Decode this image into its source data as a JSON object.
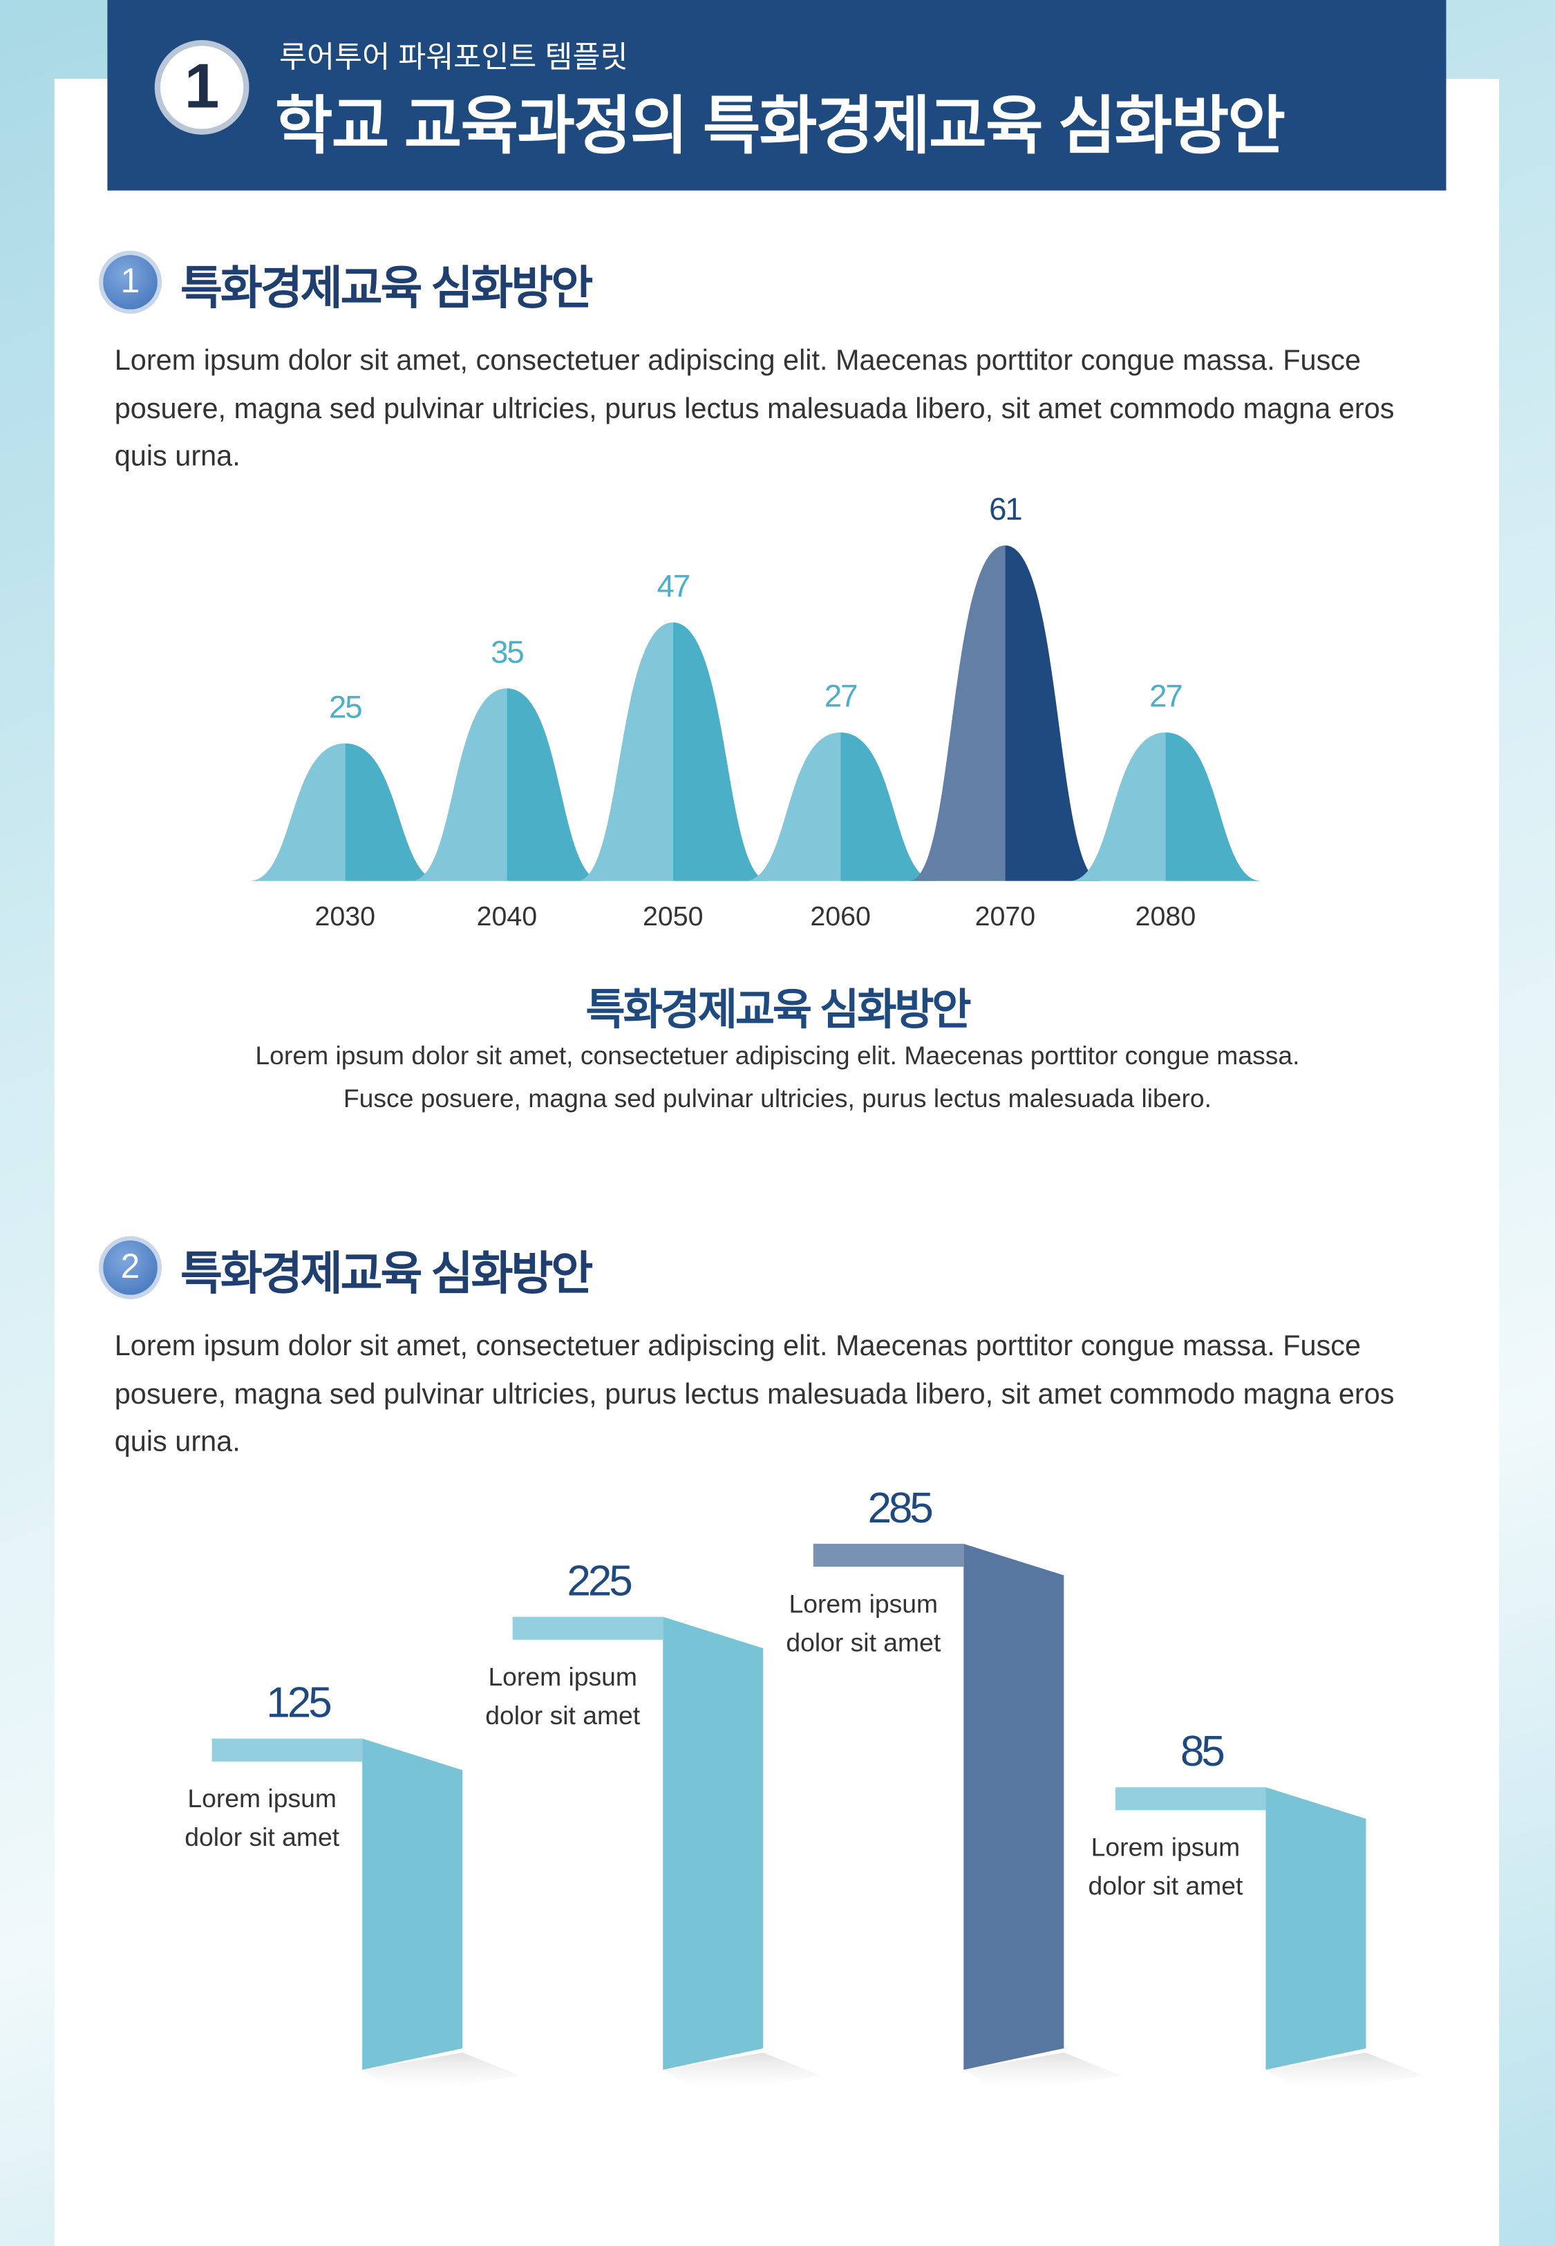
{
  "header": {
    "badge": "1",
    "subtitle": "루어투어 파워포인트 템플릿",
    "title": "학교 교육과정의 특화경제교육 심화방안"
  },
  "sections": [
    {
      "number": "1",
      "heading": "특화경제교육 심화방안",
      "body": "Lorem ipsum dolor sit amet, consectetuer adipiscing elit. Maecenas porttitor congue massa. Fusce posuere, magna sed pulvinar ultricies, purus lectus malesuada libero, sit amet commodo magna eros quis urna.",
      "chart": {
        "type": "bell",
        "categories": [
          "2030",
          "2040",
          "2050",
          "2060",
          "2070",
          "2080"
        ],
        "values": [
          25,
          35,
          47,
          27,
          61,
          27
        ],
        "colors": [
          "#4bafc8",
          "#4bafc8",
          "#4bafc8",
          "#4bafc8",
          "#1f4a80",
          "#4bafc8"
        ]
      },
      "caption_title": "특화경제교육 심화방안",
      "caption": [
        "Lorem ipsum dolor sit amet, consectetuer adipiscing elit. Maecenas porttitor congue massa.",
        "Fusce posuere, magna sed pulvinar ultricies, purus lectus malesuada libero."
      ]
    },
    {
      "number": "2",
      "heading": "특화경제교육 심화방안",
      "body": "Lorem ipsum dolor sit amet, consectetuer adipiscing elit. Maecenas porttitor congue massa. Fusce posuere, magna sed pulvinar ultricies, purus lectus malesuada libero, sit amet commodo magna eros quis urna.",
      "chart": {
        "type": "step",
        "values": [
          125,
          225,
          285,
          85
        ],
        "labels": [
          [
            "Lorem ipsum",
            "dolor sit amet"
          ],
          [
            "Lorem ipsum",
            "dolor sit amet"
          ],
          [
            "Lorem ipsum",
            "dolor sit amet"
          ],
          [
            "Lorem ipsum",
            "dolor sit amet"
          ]
        ],
        "colors": [
          "#4bafc8",
          "#4bafc8",
          "#1f4a80",
          "#4bafc8"
        ]
      }
    }
  ]
}
